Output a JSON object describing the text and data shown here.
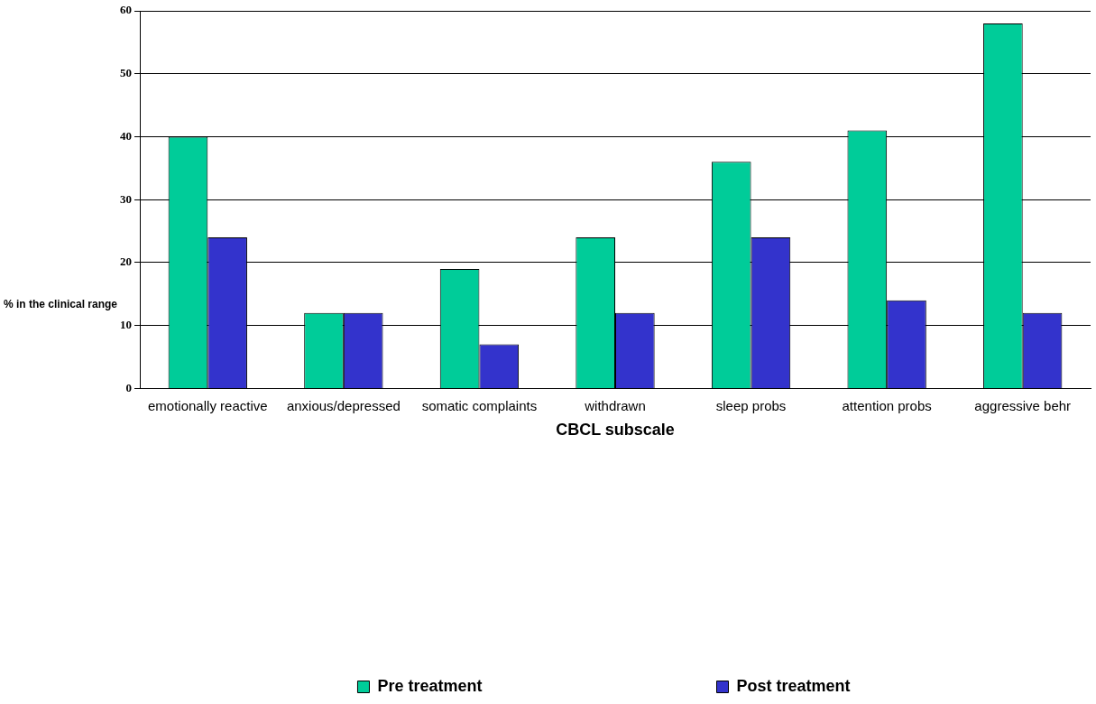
{
  "chart_data": {
    "type": "bar",
    "xlabel": "CBCL subscale",
    "ylabel": "% in the clinical range",
    "categories": [
      "emotionally reactive",
      "anxious/depressed",
      "somatic complaints",
      "withdrawn",
      "sleep probs",
      "attention probs",
      "aggressive behr"
    ],
    "series": [
      {
        "name": "Pre treatment",
        "color": "#00cc99",
        "values": [
          40,
          12,
          19,
          24,
          36,
          41,
          58
        ]
      },
      {
        "name": "Post treatment",
        "color": "#3333cc",
        "values": [
          24,
          12,
          7,
          12,
          24,
          14,
          12
        ]
      }
    ],
    "ylim": [
      0,
      60
    ],
    "yticks": [
      0,
      10,
      20,
      30,
      40,
      50,
      60
    ],
    "grid": "y",
    "legend": "bottom"
  }
}
